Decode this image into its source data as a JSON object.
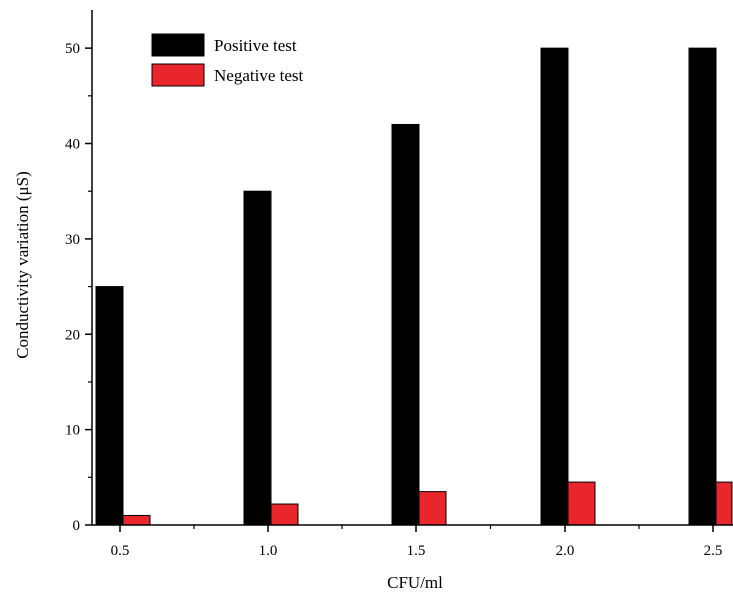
{
  "chart_data": {
    "type": "bar",
    "title": "",
    "xlabel": "CFU/ml",
    "ylabel": "Conductivity variation (μS)",
    "categories": [
      "0.5",
      "1.0",
      "1.5",
      "2.0",
      "2.5"
    ],
    "series": [
      {
        "name": "Positive test",
        "values": [
          25,
          35,
          42,
          50,
          50
        ],
        "color": "#000000"
      },
      {
        "name": "Negative test",
        "values": [
          1,
          2.2,
          3.5,
          4.5,
          4.5
        ],
        "color": "#e8262c"
      }
    ],
    "ylim": [
      0,
      54
    ],
    "yticks": [
      "0",
      "10",
      "20",
      "30",
      "40",
      "50"
    ],
    "grid": false,
    "legend_position": "top-left"
  }
}
